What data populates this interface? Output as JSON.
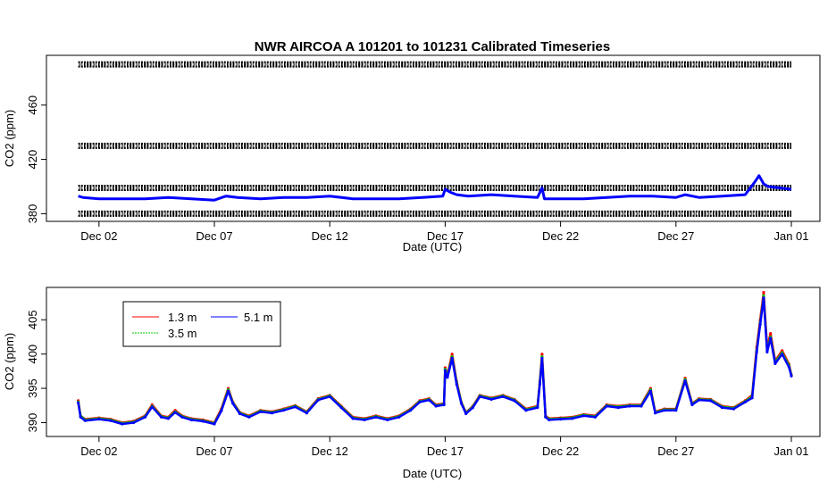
{
  "chart_data": [
    {
      "type": "line",
      "title": "NWR   AIRCOA  A   101201  to  101231   Calibrated Timeseries",
      "xlabel": "Date (UTC)",
      "ylabel": "CO2 (ppm)",
      "x_ticks": [
        "Dec 02",
        "Dec 07",
        "Dec 12",
        "Dec 17",
        "Dec 22",
        "Dec 27",
        "Jan 01"
      ],
      "x_tick_days": [
        2,
        7,
        12,
        17,
        22,
        27,
        32
      ],
      "xlim": [
        1,
        32
      ],
      "y_ticks": [
        380,
        420,
        460
      ],
      "ylim": [
        377,
        494
      ],
      "grid": false,
      "reference_series": [
        {
          "name": "",
          "constant": 490,
          "color": "#000000"
        },
        {
          "name": "",
          "constant": 430,
          "color": "#000000"
        },
        {
          "name": "",
          "constant": 399,
          "color": "#000000"
        },
        {
          "name": "",
          "constant": 380,
          "color": "#000000"
        }
      ],
      "series": [
        {
          "name": "",
          "color": "#0000ff",
          "x": [
            1.1,
            1.3,
            2,
            3,
            4,
            5,
            6,
            7,
            7.5,
            8,
            9,
            10,
            11,
            12,
            13,
            14,
            15,
            16,
            16.9,
            17.0,
            17.2,
            17.5,
            18,
            19,
            20,
            21,
            21.2,
            21.3,
            22,
            23,
            24,
            25,
            26,
            27,
            27.4,
            28,
            29,
            30,
            30.4,
            30.6,
            30.8,
            31,
            31.5,
            32
          ],
          "y": [
            393,
            392,
            391,
            391,
            391,
            392,
            391,
            390,
            393,
            392,
            391,
            392,
            392,
            393,
            391,
            391,
            391,
            392,
            393,
            398,
            396,
            394,
            393,
            394,
            393,
            392,
            399,
            391,
            391,
            391,
            392,
            393,
            393,
            392,
            394,
            392,
            393,
            394,
            403,
            408,
            402,
            400,
            399,
            398
          ]
        }
      ]
    },
    {
      "type": "line",
      "title": "",
      "xlabel": "Date (UTC)",
      "ylabel": "CO2 (ppm)",
      "x_ticks": [
        "Dec 02",
        "Dec 07",
        "Dec 12",
        "Dec 17",
        "Dec 22",
        "Dec 27",
        "Jan 01"
      ],
      "x_tick_days": [
        2,
        7,
        12,
        17,
        22,
        27,
        32
      ],
      "xlim": [
        1,
        32
      ],
      "y_ticks": [
        390,
        395,
        400,
        405
      ],
      "ylim": [
        388.5,
        409.2
      ],
      "grid": false,
      "legend": {
        "position": "top-left",
        "columns": 2
      },
      "x": [
        1.1,
        1.2,
        1.4,
        2,
        2.5,
        3,
        3.5,
        4,
        4.3,
        4.7,
        5,
        5.3,
        5.6,
        6,
        6.5,
        7,
        7.3,
        7.6,
        7.8,
        8.1,
        8.5,
        9,
        9.5,
        10,
        10.5,
        11,
        11.5,
        12,
        12.5,
        13,
        13.5,
        14,
        14.5,
        15,
        15.5,
        15.9,
        16.3,
        16.6,
        16.95,
        17.0,
        17.1,
        17.3,
        17.5,
        17.7,
        17.9,
        18.2,
        18.5,
        19,
        19.5,
        20,
        20.5,
        21,
        21.1,
        21.2,
        21.35,
        21.5,
        22,
        22.5,
        23,
        23.5,
        24,
        24.5,
        25,
        25.5,
        25.9,
        26.1,
        26.5,
        27,
        27.4,
        27.7,
        28,
        28.5,
        29,
        29.5,
        30,
        30.3,
        30.5,
        30.65,
        30.8,
        30.95,
        31.1,
        31.3,
        31.6,
        31.9,
        32
      ],
      "series": [
        {
          "name": "1.3 m",
          "color": "#ff0000",
          "y": [
            393.2,
            391,
            390.5,
            390.7,
            390.5,
            390,
            390.2,
            391,
            392.6,
            391,
            390.8,
            391.8,
            391,
            390.6,
            390.4,
            390,
            392,
            395,
            393,
            391.5,
            391,
            391.8,
            391.6,
            392,
            392.5,
            391.6,
            393.5,
            394,
            392.4,
            390.8,
            390.6,
            391,
            390.6,
            391,
            392,
            393.2,
            393.5,
            392.6,
            392.8,
            398,
            397,
            400,
            396,
            393,
            391.5,
            392.4,
            394,
            393.6,
            394,
            393.4,
            392,
            392.4,
            396,
            400,
            391,
            390.6,
            390.7,
            390.8,
            391.2,
            391,
            392.6,
            392.4,
            392.6,
            392.6,
            395,
            391.6,
            392,
            392,
            396.5,
            392.8,
            393.5,
            393.4,
            392.4,
            392.2,
            393.2,
            394,
            401,
            405,
            409,
            401,
            403,
            399,
            400.5,
            398.5,
            397
          ]
        },
        {
          "name": "3.5 m",
          "color": "#00cc00",
          "y": [
            393,
            391,
            390.4,
            390.6,
            390.4,
            389.9,
            390.1,
            390.9,
            392.4,
            390.9,
            390.7,
            391.6,
            390.9,
            390.5,
            390.3,
            389.9,
            391.8,
            394.8,
            392.9,
            391.4,
            390.9,
            391.7,
            391.5,
            391.9,
            392.4,
            391.5,
            393.4,
            393.9,
            392.3,
            390.7,
            390.5,
            390.9,
            390.5,
            390.9,
            391.9,
            393.1,
            393.4,
            392.5,
            392.7,
            397.8,
            396.8,
            399.6,
            395.8,
            392.9,
            391.4,
            392.3,
            393.9,
            393.5,
            393.9,
            393.3,
            391.9,
            392.3,
            395.8,
            399.6,
            390.9,
            390.5,
            390.6,
            390.7,
            391.1,
            390.9,
            392.5,
            392.3,
            392.5,
            392.5,
            394.8,
            391.5,
            391.9,
            391.9,
            396.3,
            392.7,
            393.4,
            393.3,
            392.3,
            392.1,
            393.1,
            393.8,
            400.5,
            404.5,
            408.5,
            400.5,
            402.5,
            398.8,
            400.2,
            398.3,
            396.9
          ]
        },
        {
          "name": "5.1 m",
          "color": "#0000ff",
          "y": [
            392.9,
            390.8,
            390.3,
            390.5,
            390.3,
            389.8,
            390,
            390.8,
            392.3,
            390.8,
            390.6,
            391.5,
            390.8,
            390.4,
            390.2,
            389.8,
            391.7,
            394.6,
            392.8,
            391.3,
            390.8,
            391.6,
            391.4,
            391.8,
            392.3,
            391.4,
            393.3,
            393.8,
            392.2,
            390.6,
            390.4,
            390.8,
            390.4,
            390.8,
            391.8,
            393,
            393.3,
            392.4,
            392.6,
            397.6,
            396.6,
            399.4,
            395.6,
            392.8,
            391.3,
            392.2,
            393.8,
            393.4,
            393.8,
            393.2,
            391.8,
            392.2,
            395.6,
            399.4,
            390.8,
            390.4,
            390.5,
            390.6,
            391,
            390.8,
            392.4,
            392.2,
            392.4,
            392.4,
            394.6,
            391.4,
            391.8,
            391.8,
            396.1,
            392.6,
            393.3,
            393.2,
            392.2,
            392,
            393,
            393.6,
            400.3,
            404.3,
            408.2,
            400.3,
            402.3,
            398.6,
            400,
            398.1,
            396.8
          ]
        }
      ]
    }
  ]
}
